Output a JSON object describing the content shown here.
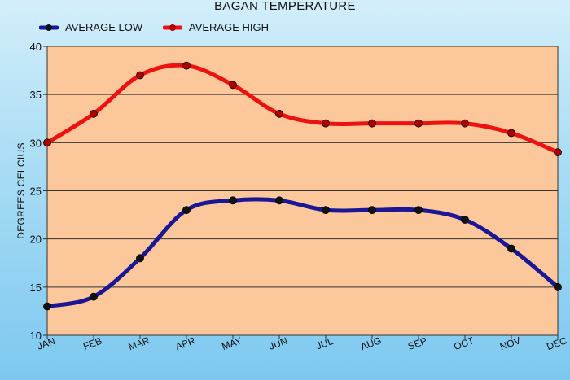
{
  "chart_data": {
    "type": "line",
    "title": "BAGAN TEMPERATURE",
    "xlabel": "",
    "ylabel": "DEGREES CELCIUS",
    "categories": [
      "JAN",
      "FEB",
      "MAR",
      "APR",
      "MAY",
      "JUN",
      "JUL",
      "AUG",
      "SEP",
      "OCT",
      "NOV",
      "DEC"
    ],
    "ylim": [
      10,
      40
    ],
    "yticks": [
      10,
      15,
      20,
      25,
      30,
      35,
      40
    ],
    "grid": true,
    "legend_position": "top-left",
    "plot_background": "#fcc79a",
    "series": [
      {
        "name": "AVERAGE LOW",
        "color": "#1a1696",
        "values": [
          13,
          14,
          18,
          23,
          24,
          24,
          23,
          23,
          23,
          22,
          19,
          15
        ]
      },
      {
        "name": "AVERAGE HIGH",
        "color": "#ee1111",
        "values": [
          30,
          33,
          37,
          38,
          36,
          33,
          32,
          32,
          32,
          32,
          31,
          29
        ]
      }
    ]
  }
}
